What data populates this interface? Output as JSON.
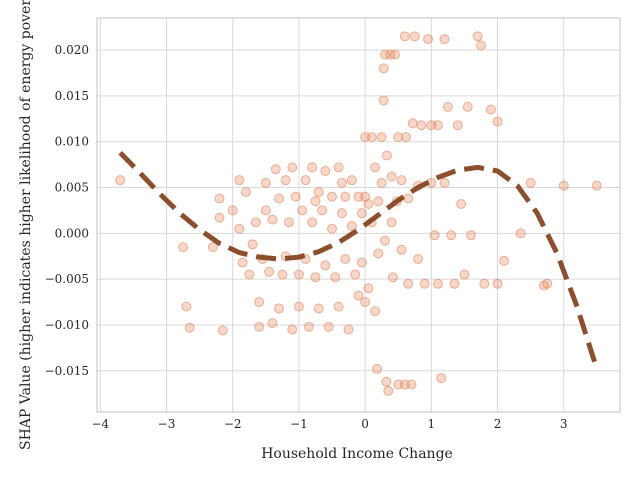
{
  "chart_data": {
    "type": "scatter",
    "xlabel": "Household Income Change",
    "ylabel": "SHAP Value (higher indicates higher likelihood of energy poverty)",
    "xlim": [
      -4.05,
      3.85
    ],
    "ylim": [
      -0.0195,
      0.0235
    ],
    "x_ticks": [
      -4,
      -3,
      -2,
      -1,
      0,
      1,
      2,
      3
    ],
    "x_tick_labels": [
      "−4",
      "−3",
      "−2",
      "−1",
      "0",
      "1",
      "2",
      "3"
    ],
    "y_ticks": [
      -0.015,
      -0.01,
      -0.005,
      0.0,
      0.005,
      0.01,
      0.015,
      0.02
    ],
    "y_tick_labels": [
      "−0.015",
      "−0.010",
      "−0.005",
      "0.000",
      "0.005",
      "0.010",
      "0.015",
      "0.020"
    ],
    "grid": true,
    "legend": "none",
    "colors": {
      "points": "#e07b4f",
      "trend": "#8c4f2e",
      "grid": "#d9d9d9",
      "spine": "#cccccc"
    },
    "series": [
      {
        "kind": "scatter",
        "points": [
          [
            -3.7,
            0.0058
          ],
          [
            -2.75,
            -0.0015
          ],
          [
            -2.7,
            -0.008
          ],
          [
            -2.65,
            -0.0103
          ],
          [
            -2.3,
            -0.0015
          ],
          [
            -2.2,
            0.0038
          ],
          [
            -2.2,
            0.0017
          ],
          [
            -2.15,
            -0.0106
          ],
          [
            -2.0,
            0.0025
          ],
          [
            -1.9,
            0.0058
          ],
          [
            -1.85,
            -0.0032
          ],
          [
            -1.8,
            0.0045
          ],
          [
            -1.75,
            -0.0045
          ],
          [
            -1.7,
            -0.0012
          ],
          [
            -1.65,
            0.0012
          ],
          [
            -1.6,
            -0.0075
          ],
          [
            -1.6,
            -0.0102
          ],
          [
            -1.55,
            -0.0028
          ],
          [
            -1.5,
            0.0055
          ],
          [
            -1.5,
            0.0025
          ],
          [
            -1.45,
            -0.0042
          ],
          [
            -1.4,
            0.0015
          ],
          [
            -1.4,
            -0.0098
          ],
          [
            -1.35,
            0.007
          ],
          [
            -1.3,
            -0.0082
          ],
          [
            -1.3,
            0.0038
          ],
          [
            -1.25,
            -0.0045
          ],
          [
            -1.2,
            0.0058
          ],
          [
            -1.2,
            -0.0025
          ],
          [
            -1.15,
            0.0012
          ],
          [
            -1.1,
            0.0072
          ],
          [
            -1.1,
            -0.0105
          ],
          [
            -1.05,
            0.004
          ],
          [
            -1.0,
            -0.0045
          ],
          [
            -1.0,
            -0.008
          ],
          [
            -0.95,
            0.0025
          ],
          [
            -0.9,
            0.0058
          ],
          [
            -0.9,
            -0.0028
          ],
          [
            -0.85,
            -0.0102
          ],
          [
            -0.8,
            0.0072
          ],
          [
            -0.8,
            0.0012
          ],
          [
            -0.75,
            -0.0048
          ],
          [
            -0.7,
            0.0045
          ],
          [
            -0.7,
            -0.0082
          ],
          [
            -0.65,
            0.0025
          ],
          [
            -0.6,
            0.0068
          ],
          [
            -0.6,
            -0.0035
          ],
          [
            -0.55,
            -0.0102
          ],
          [
            -0.5,
            0.004
          ],
          [
            -0.5,
            0.0005
          ],
          [
            -0.45,
            -0.0048
          ],
          [
            -0.4,
            0.0072
          ],
          [
            -0.4,
            -0.008
          ],
          [
            -0.35,
            0.0022
          ],
          [
            -0.3,
            -0.0028
          ],
          [
            -0.3,
            0.004
          ],
          [
            -0.25,
            -0.0105
          ],
          [
            -0.2,
            0.0058
          ],
          [
            -0.2,
            0.0008
          ],
          [
            -0.15,
            -0.0045
          ],
          [
            -0.1,
            0.004
          ],
          [
            -0.1,
            -0.0068
          ],
          [
            -0.05,
            0.0022
          ],
          [
            -0.05,
            -0.0032
          ],
          [
            0.0,
            0.004
          ],
          [
            0.0,
            -0.0075
          ],
          [
            0.0,
            0.0105
          ],
          [
            0.05,
            0.0032
          ],
          [
            0.05,
            -0.006
          ],
          [
            0.1,
            0.0105
          ],
          [
            0.1,
            0.0012
          ],
          [
            0.15,
            -0.0085
          ],
          [
            0.15,
            0.0072
          ],
          [
            0.2,
            0.0035
          ],
          [
            0.2,
            -0.0022
          ],
          [
            0.25,
            0.0105
          ],
          [
            0.25,
            0.0055
          ],
          [
            0.28,
            0.0145
          ],
          [
            0.28,
            0.018
          ],
          [
            0.3,
            0.0195
          ],
          [
            0.3,
            -0.0008
          ],
          [
            0.32,
            -0.0162
          ],
          [
            0.33,
            0.0085
          ],
          [
            0.35,
            -0.0172
          ],
          [
            0.38,
            0.0195
          ],
          [
            0.4,
            0.0062
          ],
          [
            0.4,
            0.0012
          ],
          [
            0.42,
            -0.0048
          ],
          [
            0.45,
            0.0195
          ],
          [
            0.48,
            0.0035
          ],
          [
            0.5,
            0.0105
          ],
          [
            0.5,
            -0.0165
          ],
          [
            0.55,
            0.0058
          ],
          [
            0.55,
            -0.0018
          ],
          [
            0.6,
            0.0215
          ],
          [
            0.62,
            0.0105
          ],
          [
            0.65,
            0.0038
          ],
          [
            0.65,
            -0.0055
          ],
          [
            0.7,
            -0.0165
          ],
          [
            0.72,
            0.012
          ],
          [
            0.75,
            0.0215
          ],
          [
            0.8,
            0.0052
          ],
          [
            0.8,
            -0.0028
          ],
          [
            0.85,
            0.0118
          ],
          [
            0.9,
            -0.0055
          ],
          [
            0.95,
            0.0212
          ],
          [
            1.0,
            0.0118
          ],
          [
            1.0,
            0.0055
          ],
          [
            1.05,
            -0.0002
          ],
          [
            1.1,
            -0.0055
          ],
          [
            1.1,
            0.0118
          ],
          [
            1.15,
            -0.0158
          ],
          [
            1.2,
            0.0212
          ],
          [
            1.25,
            0.0138
          ],
          [
            1.3,
            -0.0002
          ],
          [
            1.35,
            -0.0055
          ],
          [
            1.4,
            0.0118
          ],
          [
            1.45,
            0.0032
          ],
          [
            1.5,
            -0.0045
          ],
          [
            1.55,
            0.0138
          ],
          [
            1.6,
            -0.0002
          ],
          [
            1.7,
            0.0215
          ],
          [
            1.75,
            0.0205
          ],
          [
            1.8,
            -0.0055
          ],
          [
            1.9,
            0.0135
          ],
          [
            2.0,
            0.0122
          ],
          [
            2.0,
            -0.0055
          ],
          [
            2.1,
            -0.003
          ],
          [
            2.35,
            0.0
          ],
          [
            2.5,
            0.0055
          ],
          [
            2.7,
            -0.0057
          ],
          [
            2.75,
            -0.0055
          ],
          [
            3.0,
            0.0052
          ],
          [
            3.5,
            0.0052
          ],
          [
            -0.35,
            0.0055
          ],
          [
            0.18,
            -0.0148
          ],
          [
            -0.75,
            0.0035
          ],
          [
            0.6,
            -0.0165
          ],
          [
            1.2,
            0.0055
          ],
          [
            -1.9,
            0.0005
          ]
        ]
      },
      {
        "kind": "trend",
        "points": [
          [
            -3.7,
            0.0088
          ],
          [
            -3.4,
            0.0066
          ],
          [
            -3.1,
            0.0043
          ],
          [
            -2.8,
            0.0022
          ],
          [
            -2.5,
            0.0004
          ],
          [
            -2.2,
            -0.0011
          ],
          [
            -1.9,
            -0.0021
          ],
          [
            -1.6,
            -0.0026
          ],
          [
            -1.3,
            -0.0028
          ],
          [
            -1.0,
            -0.0026
          ],
          [
            -0.7,
            -0.002
          ],
          [
            -0.4,
            -0.001
          ],
          [
            -0.1,
            0.0004
          ],
          [
            0.2,
            0.002
          ],
          [
            0.5,
            0.0036
          ],
          [
            0.8,
            0.005
          ],
          [
            1.1,
            0.0061
          ],
          [
            1.4,
            0.0069
          ],
          [
            1.7,
            0.0072
          ],
          [
            2.0,
            0.0068
          ],
          [
            2.3,
            0.0052
          ],
          [
            2.6,
            0.0022
          ],
          [
            2.9,
            -0.0022
          ],
          [
            3.2,
            -0.008
          ],
          [
            3.5,
            -0.0148
          ]
        ]
      }
    ]
  }
}
